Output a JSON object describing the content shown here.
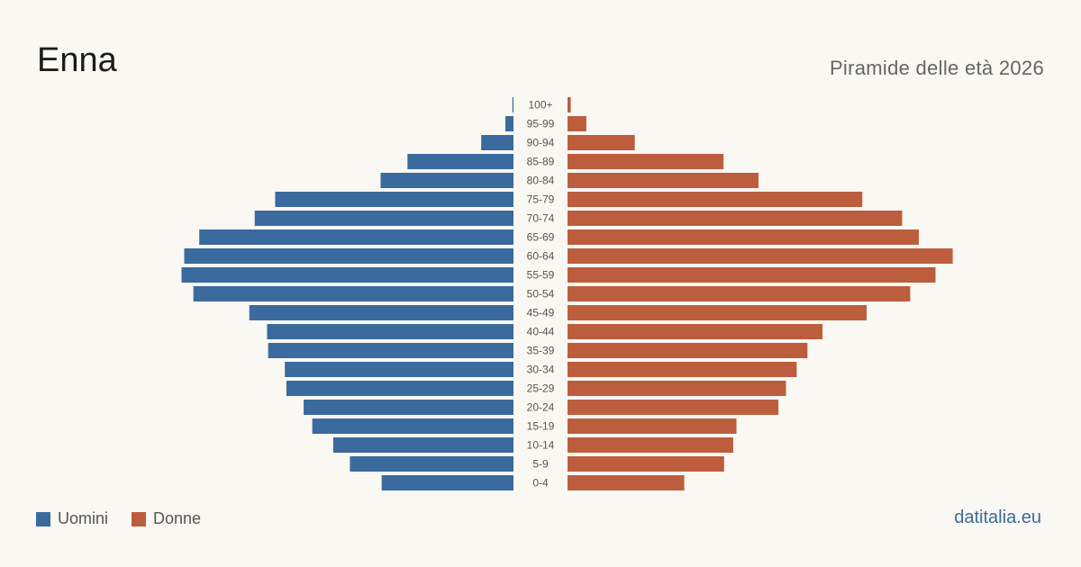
{
  "header": {
    "title": "Enna",
    "subtitle": "Piramide delle età 2026"
  },
  "legend": {
    "men_label": "Uomini",
    "women_label": "Donne"
  },
  "brand": "datitalia.eu",
  "colors": {
    "men": "#3a6a9e",
    "women": "#bc5e3d"
  },
  "chart_data": {
    "type": "bar",
    "orientation": "horizontal-pyramid",
    "categories": [
      "100+",
      "95-99",
      "90-94",
      "85-89",
      "80-84",
      "75-79",
      "70-74",
      "65-69",
      "60-64",
      "55-59",
      "50-54",
      "45-49",
      "40-44",
      "35-39",
      "30-34",
      "25-29",
      "20-24",
      "15-19",
      "10-14",
      "5-9",
      "0-4"
    ],
    "series": [
      {
        "name": "Uomini",
        "values": [
          2,
          15,
          60,
          197,
          247,
          443,
          481,
          584,
          612,
          617,
          595,
          491,
          458,
          456,
          425,
          422,
          390,
          374,
          335,
          304,
          245
        ]
      },
      {
        "name": "Donne",
        "values": [
          6,
          35,
          125,
          290,
          355,
          548,
          622,
          653,
          716,
          684,
          637,
          556,
          474,
          446,
          426,
          406,
          392,
          314,
          308,
          291,
          217
        ]
      }
    ],
    "xlim": [
      0,
      720
    ],
    "grid": false,
    "legend_position": "bottom-left"
  }
}
